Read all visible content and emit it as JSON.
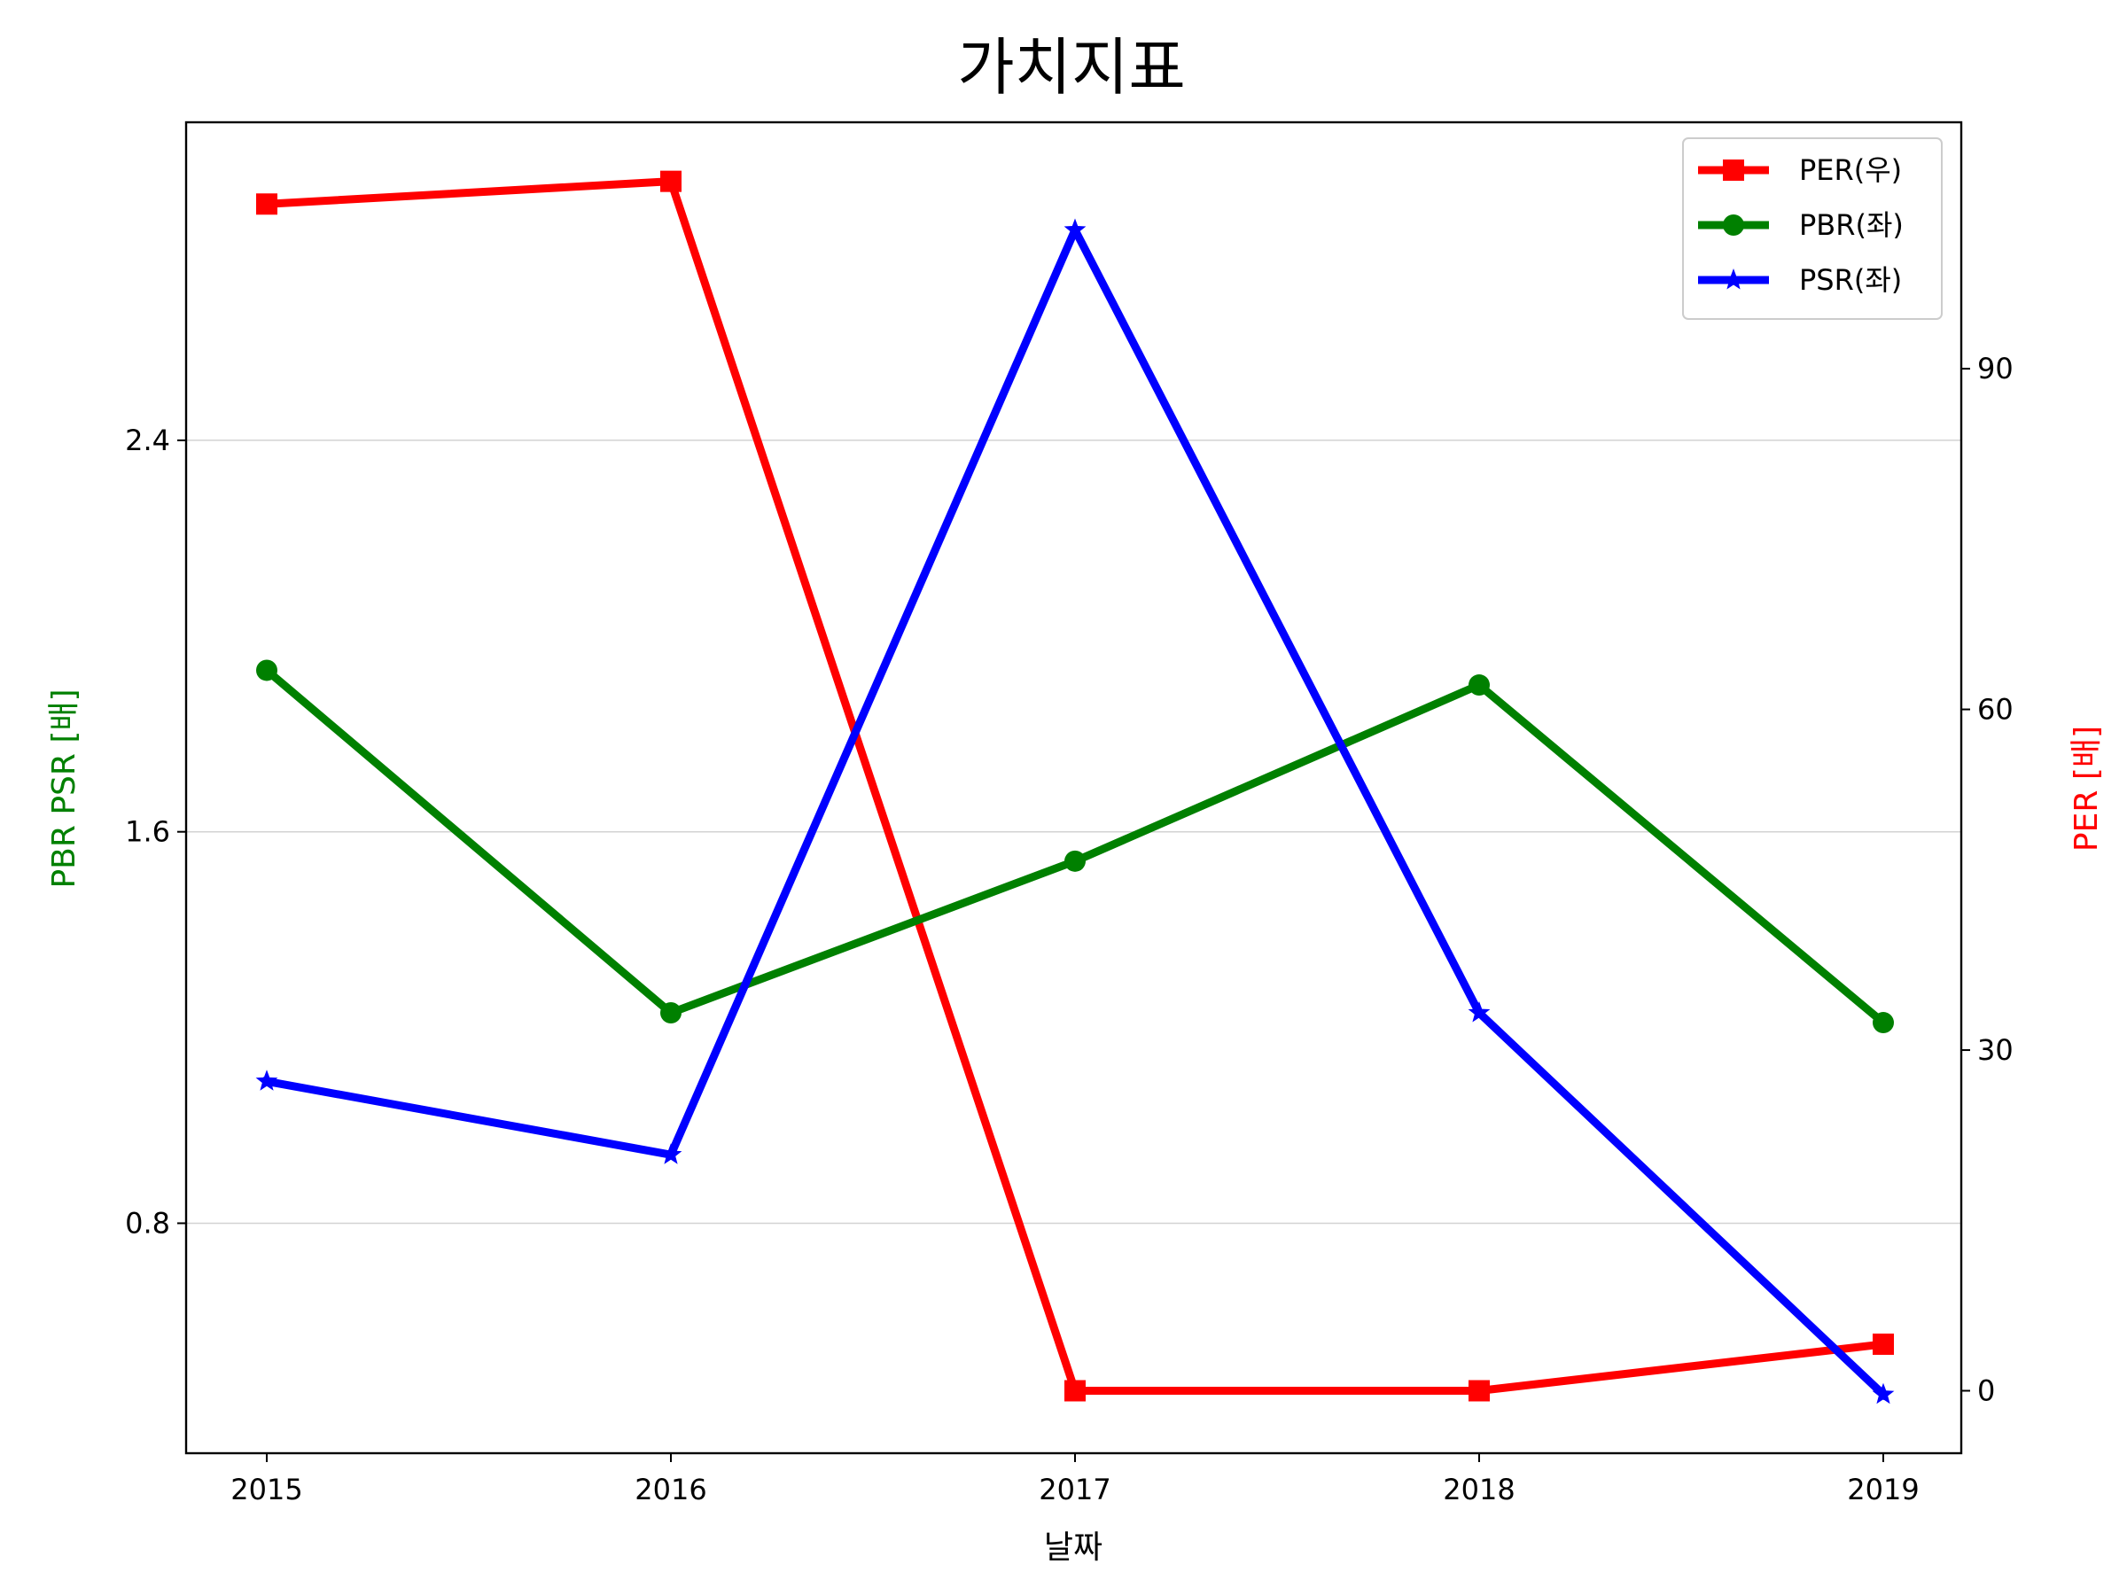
{
  "chart_data": {
    "type": "line",
    "title": "가치지표",
    "xlabel": "날짜",
    "ylabel_left": "PBR PSR [배]",
    "ylabel_right": "PER [배]",
    "ylabel_left_color": "#008000",
    "ylabel_right_color": "#ff0000",
    "x": [
      "2015",
      "2016",
      "2017",
      "2018",
      "2019"
    ],
    "left_axis": {
      "ylim": [
        0.33,
        3.05
      ],
      "ticks": [
        "0.8",
        "1.6",
        "2.4"
      ],
      "tick_values": [
        0.8,
        1.6,
        2.4
      ]
    },
    "right_axis": {
      "ylim": [
        -5.5,
        111.7
      ],
      "ticks": [
        "0",
        "30",
        "60",
        "90"
      ],
      "tick_values": [
        0,
        30,
        60,
        90
      ]
    },
    "grid": "horizontal (left axis)",
    "legend_position": "top-right",
    "series": [
      {
        "name": "PER(우)",
        "axis": "right",
        "color": "#ff0000",
        "marker": "square",
        "values": [
          104.5,
          106.5,
          0.0,
          0.0,
          4.1
        ]
      },
      {
        "name": "PBR(좌)",
        "axis": "left",
        "color": "#008000",
        "marker": "circle",
        "values": [
          1.93,
          1.23,
          1.54,
          1.9,
          1.21
        ]
      },
      {
        "name": "PSR(좌)",
        "axis": "left",
        "color": "#0000ff",
        "marker": "star",
        "values": [
          1.09,
          0.94,
          2.83,
          1.23,
          0.45
        ]
      }
    ]
  }
}
